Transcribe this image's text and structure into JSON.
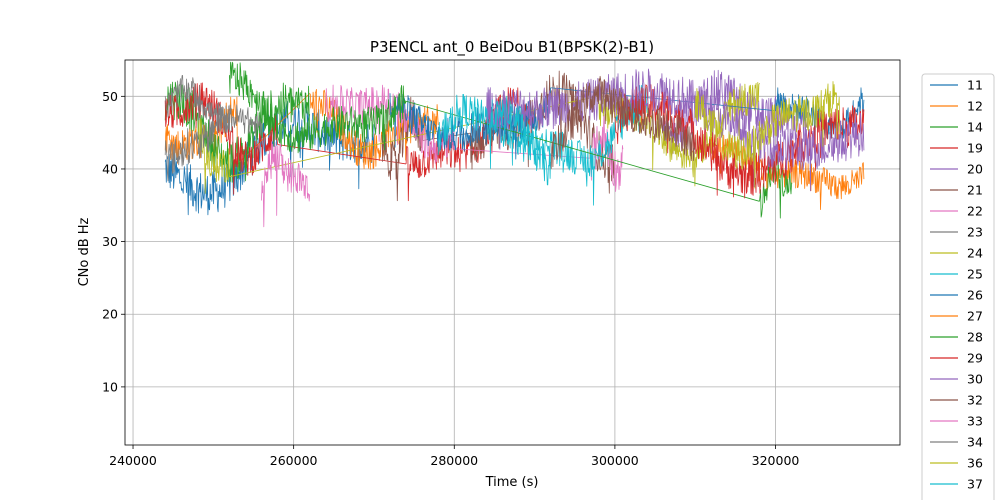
{
  "chart_data": {
    "type": "line",
    "title": "P3ENCL ant_0 BeiDou B1(BPSK(2)-B1)",
    "xlabel": "Time (s)",
    "ylabel": "CNo dB Hz",
    "xlim": [
      239000,
      335500
    ],
    "ylim": [
      2,
      55
    ],
    "xticks": [
      240000,
      260000,
      280000,
      300000,
      320000
    ],
    "yticks": [
      10,
      20,
      30,
      40,
      50
    ],
    "grid": true,
    "legend_position": "outside-right",
    "series": [
      {
        "name": "11",
        "color": "#1f77b4",
        "segments": [
          {
            "x0": 244000,
            "x1": 270000,
            "base": 42,
            "amp": 6,
            "noise": 3.0
          }
        ]
      },
      {
        "name": "12",
        "color": "#ff7f0e",
        "segments": [
          {
            "x0": 244000,
            "x1": 253000,
            "base": 45,
            "amp": 3,
            "noise": 2.5
          },
          {
            "x0": 262000,
            "x1": 278000,
            "base": 46,
            "amp": 4,
            "noise": 2.5
          }
        ]
      },
      {
        "name": "14",
        "color": "#2ca02c",
        "segments": [
          {
            "x0": 244000,
            "x1": 262000,
            "base": 47,
            "amp": 6,
            "noise": 3.0
          }
        ]
      },
      {
        "name": "19",
        "color": "#d62728",
        "segments": [
          {
            "x0": 244000,
            "x1": 258000,
            "base": 46,
            "amp": 5,
            "noise": 2.5
          },
          {
            "x0": 274000,
            "x1": 290000,
            "base": 44,
            "amp": 5,
            "noise": 2.5
          }
        ]
      },
      {
        "name": "20",
        "color": "#9467bd",
        "segments": [
          {
            "x0": 306000,
            "x1": 324000,
            "base": 47,
            "amp": 4,
            "noise": 3.0
          }
        ]
      },
      {
        "name": "21",
        "color": "#8c564b",
        "segments": [
          {
            "x0": 271000,
            "x1": 276000,
            "base": 44,
            "amp": 4,
            "noise": 3.0
          },
          {
            "x0": 282000,
            "x1": 300000,
            "base": 45,
            "amp": 6,
            "noise": 3.0
          }
        ]
      },
      {
        "name": "22",
        "color": "#e377c2",
        "segments": [
          {
            "x0": 264000,
            "x1": 280000,
            "base": 47,
            "amp": 4,
            "noise": 2.5
          },
          {
            "x0": 297000,
            "x1": 301000,
            "base": 42,
            "amp": 3,
            "noise": 3.0
          }
        ]
      },
      {
        "name": "23",
        "color": "#7f7f7f",
        "segments": [
          {
            "x0": 244000,
            "x1": 256000,
            "base": 48,
            "amp": 3,
            "noise": 2.0
          }
        ]
      },
      {
        "name": "24",
        "color": "#bcbd22",
        "segments": [
          {
            "x0": 248000,
            "x1": 252000,
            "base": 42,
            "amp": 3,
            "noise": 2.5
          },
          {
            "x0": 298000,
            "x1": 318000,
            "base": 47,
            "amp": 5,
            "noise": 2.5
          }
        ]
      },
      {
        "name": "25",
        "color": "#17becf",
        "segments": [
          {
            "x0": 285000,
            "x1": 304000,
            "base": 45,
            "amp": 5,
            "noise": 2.5
          }
        ]
      },
      {
        "name": "26",
        "color": "#1f77b4",
        "segments": [
          {
            "x0": 272000,
            "x1": 292000,
            "base": 47,
            "amp": 3,
            "noise": 2.5
          },
          {
            "x0": 320000,
            "x1": 331000,
            "base": 48,
            "amp": 3,
            "noise": 2.0
          }
        ]
      },
      {
        "name": "27",
        "color": "#ff7f0e",
        "segments": [
          {
            "x0": 312000,
            "x1": 331000,
            "base": 40,
            "amp": 3,
            "noise": 2.0
          }
        ]
      },
      {
        "name": "28",
        "color": "#2ca02c",
        "segments": [
          {
            "x0": 252000,
            "x1": 274000,
            "base": 48,
            "amp": 5,
            "noise": 2.5
          },
          {
            "x0": 318000,
            "x1": 322000,
            "base": 38,
            "amp": 3,
            "noise": 2.5
          }
        ]
      },
      {
        "name": "29",
        "color": "#d62728",
        "segments": [
          {
            "x0": 300000,
            "x1": 331000,
            "base": 45,
            "amp": 6,
            "noise": 3.0
          }
        ]
      },
      {
        "name": "30",
        "color": "#9467bd",
        "segments": [
          {
            "x0": 284000,
            "x1": 331000,
            "base": 47,
            "amp": 5,
            "noise": 3.0
          }
        ]
      },
      {
        "name": "32",
        "color": "#8c564b",
        "segments": [
          {
            "x0": 292000,
            "x1": 310000,
            "base": 46,
            "amp": 5,
            "noise": 2.5
          }
        ]
      },
      {
        "name": "33",
        "color": "#e377c2",
        "segments": [
          {
            "x0": 256000,
            "x1": 262000,
            "base": 39,
            "amp": 3,
            "noise": 2.5
          }
        ]
      },
      {
        "name": "34",
        "color": "#7f7f7f",
        "segments": [
          {
            "x0": 244000,
            "x1": 252000,
            "base": 44,
            "amp": 3,
            "noise": 2.5
          }
        ]
      },
      {
        "name": "36",
        "color": "#bcbd22",
        "segments": [
          {
            "x0": 310000,
            "x1": 328000,
            "base": 47,
            "amp": 5,
            "noise": 2.5
          }
        ]
      },
      {
        "name": "37",
        "color": "#17becf",
        "segments": [
          {
            "x0": 278000,
            "x1": 292000,
            "base": 45,
            "amp": 5,
            "noise": 2.5
          }
        ]
      }
    ]
  }
}
